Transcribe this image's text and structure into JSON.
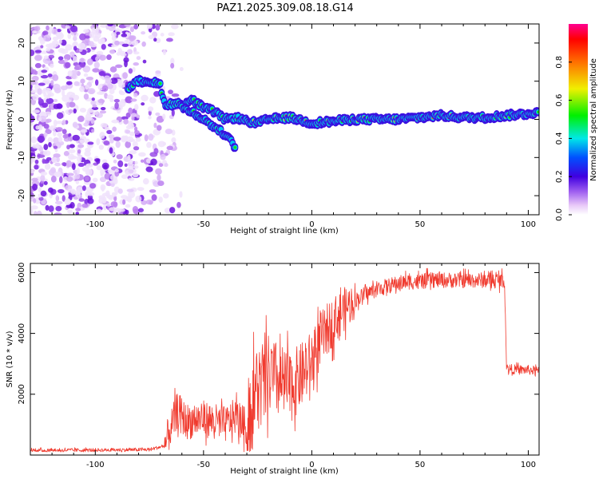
{
  "title": "PAZ1.2025.309.08.18.G14",
  "colors": {
    "line": "#f03a2e",
    "axes": "#000000",
    "background": "#ffffff"
  },
  "chart_data": [
    {
      "type": "heatmap",
      "name": "spectrogram",
      "xlabel": "Height of straight line (km)",
      "ylabel": "Frequency (Hz)",
      "xlim": [
        -130,
        105
      ],
      "ylim": [
        -25,
        25
      ],
      "xticks": [
        -100,
        -50,
        0,
        50,
        100
      ],
      "yticks": [
        -20,
        -10,
        0,
        10,
        20
      ],
      "xtick_labels": [
        "-100",
        "-50",
        "0",
        "50",
        "100"
      ],
      "ytick_labels": [
        "-20",
        "-10",
        "0",
        "10",
        "20"
      ],
      "ridge": {
        "x": [
          -85,
          -80,
          -75,
          -70,
          -68,
          -60,
          -55,
          -50,
          -45,
          -40,
          -35,
          -30,
          -25,
          -20,
          -10,
          0,
          10,
          20,
          30,
          40,
          50,
          60,
          70,
          80,
          90,
          100,
          105
        ],
        "y": [
          8,
          10,
          10,
          9,
          4,
          4,
          5,
          3,
          2,
          0,
          0.5,
          -0.5,
          -1,
          0,
          0.5,
          -1,
          -0.5,
          0,
          0,
          0,
          0.5,
          1,
          0.5,
          0.5,
          1,
          1.5,
          2
        ],
        "secondary_x": [
          -60,
          -55,
          -50,
          -45,
          -40,
          -37,
          -35
        ],
        "secondary_y": [
          3,
          2,
          0,
          -2,
          -4,
          -6,
          -8
        ],
        "unit": "Hz"
      },
      "colorbar": {
        "label": "Normalized spectral amplitude",
        "range": [
          0,
          1
        ],
        "ticks": [
          0.0,
          0.2,
          0.4,
          0.6,
          0.8
        ],
        "tick_labels": [
          "0.0",
          "0.2",
          "0.4",
          "0.6",
          "0.8"
        ]
      }
    },
    {
      "type": "line",
      "name": "snr",
      "xlabel": "Height of straight line (km)",
      "ylabel": "SNR (10 * v/v)",
      "xlim": [
        -130,
        105
      ],
      "ylim": [
        0,
        6300
      ],
      "xticks": [
        -100,
        -50,
        0,
        50,
        100
      ],
      "yticks": [
        2000,
        4000,
        6000
      ],
      "xtick_labels": [
        "-100",
        "-50",
        "0",
        "50",
        "100"
      ],
      "ytick_labels": [
        "2000",
        "4000",
        "6000"
      ],
      "series": [
        {
          "name": "SNR",
          "x": [
            -130,
            -110,
            -90,
            -75,
            -68,
            -65,
            -62,
            -58,
            -50,
            -45,
            -40,
            -35,
            -30,
            -28,
            -25,
            -22,
            -20,
            -15,
            -10,
            -5,
            0,
            5,
            10,
            15,
            20,
            25,
            30,
            35,
            40,
            45,
            50,
            55,
            60,
            65,
            70,
            75,
            80,
            85,
            89,
            90,
            95,
            100,
            105
          ],
          "values": [
            150,
            160,
            170,
            180,
            300,
            900,
            1500,
            1100,
            1200,
            1100,
            1000,
            1300,
            900,
            1500,
            2300,
            2200,
            2600,
            2400,
            2200,
            2600,
            3100,
            3900,
            4400,
            4800,
            5100,
            5300,
            5450,
            5550,
            5650,
            5700,
            5700,
            5750,
            5750,
            5750,
            5750,
            5750,
            5750,
            5750,
            5750,
            2850,
            2800,
            2800,
            2750
          ]
        }
      ]
    }
  ]
}
